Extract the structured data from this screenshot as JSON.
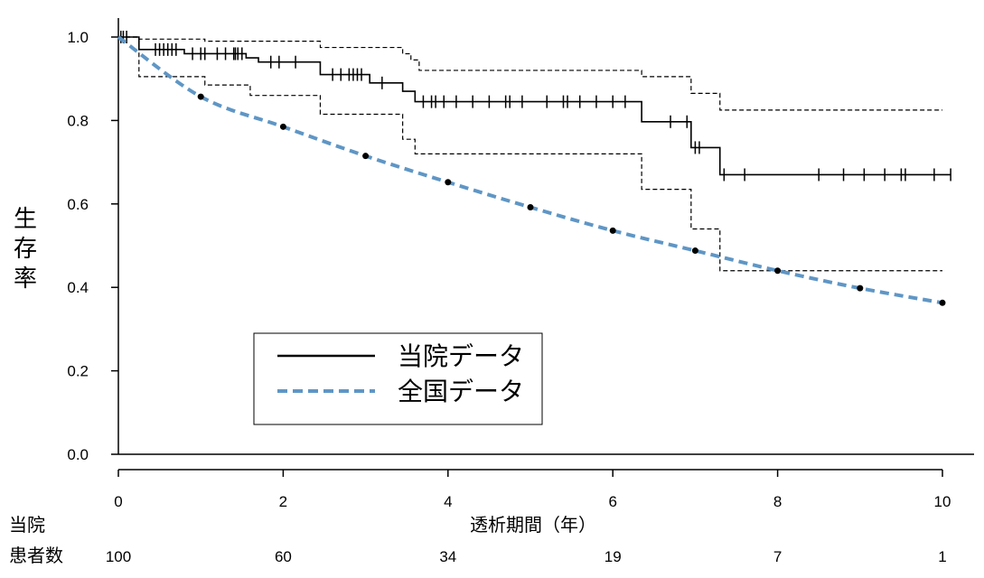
{
  "chart_data": {
    "type": "line",
    "ylabel": "生存率",
    "xlabel": "透析期間（年）",
    "xlim": [
      0,
      10
    ],
    "ylim": [
      0.0,
      1.0
    ],
    "x_ticks": [
      0,
      2,
      4,
      6,
      8,
      10
    ],
    "x_tick_labels": [
      "0",
      "2",
      "4",
      "6",
      "8",
      "10"
    ],
    "y_ticks": [
      0.0,
      0.2,
      0.4,
      0.6,
      0.8,
      1.0
    ],
    "y_tick_labels": [
      "0.0",
      "0.2",
      "0.4",
      "0.6",
      "0.8",
      "1.0"
    ],
    "grid": false,
    "legend_position": "lower-left",
    "series": [
      {
        "name": "当院データ",
        "kind": "kaplan-meier-step",
        "color": "#000000",
        "steps": [
          {
            "x": 0,
            "y": 1.0
          },
          {
            "x": 0.25,
            "y": 0.97
          },
          {
            "x": 0.8,
            "y": 0.96
          },
          {
            "x": 1.55,
            "y": 0.95
          },
          {
            "x": 1.7,
            "y": 0.94
          },
          {
            "x": 2.45,
            "y": 0.91
          },
          {
            "x": 3.05,
            "y": 0.89
          },
          {
            "x": 3.45,
            "y": 0.87
          },
          {
            "x": 3.6,
            "y": 0.845
          },
          {
            "x": 6.35,
            "y": 0.797
          },
          {
            "x": 6.95,
            "y": 0.735
          },
          {
            "x": 7.3,
            "y": 0.67
          },
          {
            "x": 10.1,
            "y": 0.67
          }
        ],
        "censor_times": [
          0.03,
          0.06,
          0.1,
          0.45,
          0.5,
          0.55,
          0.6,
          0.65,
          0.7,
          0.9,
          1.0,
          1.05,
          1.2,
          1.3,
          1.4,
          1.42,
          1.45,
          1.5,
          1.85,
          1.95,
          2.15,
          2.6,
          2.7,
          2.8,
          2.85,
          2.9,
          2.95,
          3.2,
          3.7,
          3.8,
          3.85,
          3.95,
          4.1,
          4.3,
          4.5,
          4.7,
          4.75,
          4.9,
          5.2,
          5.4,
          5.45,
          5.6,
          5.8,
          6.0,
          6.15,
          6.7,
          6.9,
          7.0,
          7.05,
          7.35,
          7.6,
          8.5,
          8.8,
          9.05,
          9.3,
          9.5,
          9.55,
          9.9,
          10.1
        ]
      },
      {
        "name": "全国データ",
        "kind": "dashed-curve",
        "color": "#5f96c5",
        "x": [
          0,
          1,
          2,
          3,
          4,
          5,
          6,
          7,
          8,
          9,
          10
        ],
        "values": [
          1.0,
          0.857,
          0.785,
          0.715,
          0.652,
          0.592,
          0.536,
          0.488,
          0.44,
          0.398,
          0.363
        ]
      }
    ],
    "confidence_band_upper": [
      {
        "x": 0,
        "y": 1.0
      },
      {
        "x": 0.25,
        "y": 0.995
      },
      {
        "x": 1.05,
        "y": 0.99
      },
      {
        "x": 2.45,
        "y": 0.975
      },
      {
        "x": 3.45,
        "y": 0.96
      },
      {
        "x": 3.55,
        "y": 0.945
      },
      {
        "x": 3.65,
        "y": 0.92
      },
      {
        "x": 6.35,
        "y": 0.905
      },
      {
        "x": 6.95,
        "y": 0.865
      },
      {
        "x": 7.3,
        "y": 0.825
      },
      {
        "x": 10.0,
        "y": 0.825
      }
    ],
    "confidence_band_lower": [
      {
        "x": 0,
        "y": 1.0
      },
      {
        "x": 0.25,
        "y": 0.905
      },
      {
        "x": 1.05,
        "y": 0.885
      },
      {
        "x": 1.6,
        "y": 0.86
      },
      {
        "x": 2.45,
        "y": 0.815
      },
      {
        "x": 3.45,
        "y": 0.755
      },
      {
        "x": 3.6,
        "y": 0.72
      },
      {
        "x": 6.35,
        "y": 0.635
      },
      {
        "x": 6.95,
        "y": 0.54
      },
      {
        "x": 7.3,
        "y": 0.44
      },
      {
        "x": 10.0,
        "y": 0.44
      }
    ],
    "risk_table": {
      "row_label_line1": "当院",
      "row_label_line2": "患者数",
      "times": [
        0,
        2,
        4,
        6,
        8,
        10
      ],
      "values": [
        "100",
        "60",
        "34",
        "19",
        "7",
        "1"
      ]
    }
  }
}
